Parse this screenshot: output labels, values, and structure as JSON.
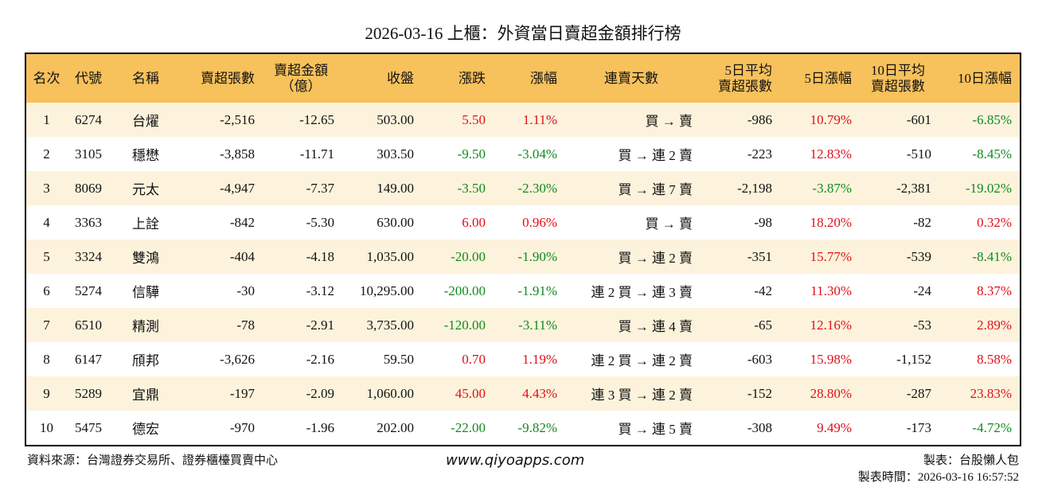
{
  "header": {
    "title": "2026-03-16 上櫃：外資當日賣超金額排行榜"
  },
  "table": {
    "columns": [
      "名次",
      "代號",
      "名稱",
      "賣超張數",
      "賣超金額\n（億）",
      "收盤",
      "漲跌",
      "漲幅",
      "連賣天數",
      "5日平均\n賣超張數",
      "5日漲幅",
      "10日平均\n賣超張數",
      "10日漲幅"
    ],
    "rows": [
      [
        "1",
        "6274",
        "台燿",
        "-2,516",
        "-12.65",
        "503.00",
        "5.50",
        "1.11%",
        "買 → 賣",
        "-986",
        "10.79%",
        "-601",
        "-6.85%"
      ],
      [
        "2",
        "3105",
        "穩懋",
        "-3,858",
        "-11.71",
        "303.50",
        "-9.50",
        "-3.04%",
        "買 → 連 2 賣",
        "-223",
        "12.83%",
        "-510",
        "-8.45%"
      ],
      [
        "3",
        "8069",
        "元太",
        "-4,947",
        "-7.37",
        "149.00",
        "-3.50",
        "-2.30%",
        "買 → 連 7 賣",
        "-2,198",
        "-3.87%",
        "-2,381",
        "-19.02%"
      ],
      [
        "4",
        "3363",
        "上詮",
        "-842",
        "-5.30",
        "630.00",
        "6.00",
        "0.96%",
        "買 → 賣",
        "-98",
        "18.20%",
        "-82",
        "0.32%"
      ],
      [
        "5",
        "3324",
        "雙鴻",
        "-404",
        "-4.18",
        "1,035.00",
        "-20.00",
        "-1.90%",
        "買 → 連 2 賣",
        "-351",
        "15.77%",
        "-539",
        "-8.41%"
      ],
      [
        "6",
        "5274",
        "信驊",
        "-30",
        "-3.12",
        "10,295.00",
        "-200.00",
        "-1.91%",
        "連 2 買 → 連 3 賣",
        "-42",
        "11.30%",
        "-24",
        "8.37%"
      ],
      [
        "7",
        "6510",
        "精測",
        "-78",
        "-2.91",
        "3,735.00",
        "-120.00",
        "-3.11%",
        "買 → 連 4 賣",
        "-65",
        "12.16%",
        "-53",
        "2.89%"
      ],
      [
        "8",
        "6147",
        "頎邦",
        "-3,626",
        "-2.16",
        "59.50",
        "0.70",
        "1.19%",
        "連 2 買 → 連 2 賣",
        "-603",
        "15.98%",
        "-1,152",
        "8.58%"
      ],
      [
        "9",
        "5289",
        "宜鼎",
        "-197",
        "-2.09",
        "1,060.00",
        "45.00",
        "4.43%",
        "連 3 買 → 連 2 賣",
        "-152",
        "28.80%",
        "-287",
        "23.83%"
      ],
      [
        "10",
        "5475",
        "德宏",
        "-970",
        "-1.96",
        "202.00",
        "-22.00",
        "-9.82%",
        "買 → 連 5 賣",
        "-308",
        "9.49%",
        "-173",
        "-4.72%"
      ]
    ]
  },
  "footer": {
    "source": "資料來源：台灣證券交易所、證券櫃檯買賣中心",
    "url": "www.qiyoapps.com",
    "author": "製表：台股懶人包",
    "time": "製表時間：2026-03-16 16:57:52"
  }
}
